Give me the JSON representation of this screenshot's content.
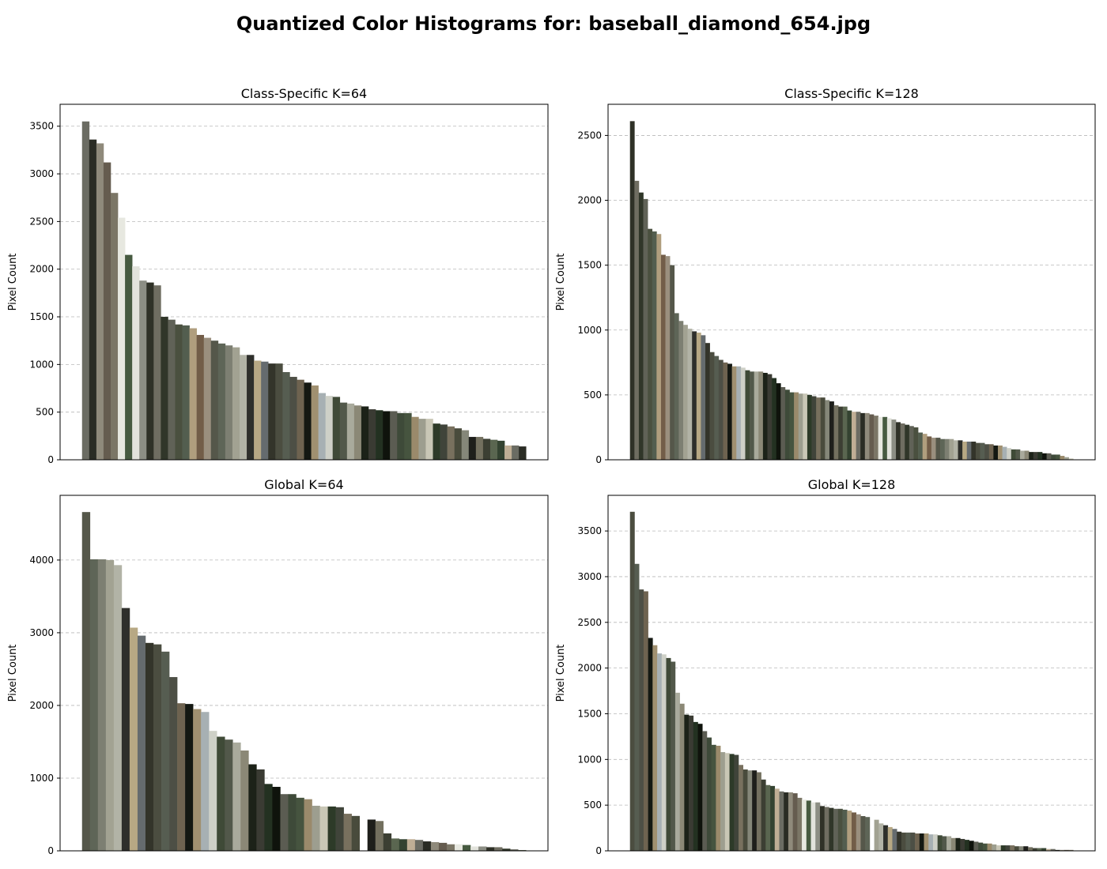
{
  "figure": {
    "title": "Quantized Color Histograms for: baseball_diamond_654.jpg"
  },
  "palette": [
    "#6b6c63",
    "#5b5c52",
    "#33342a",
    "#2f3127",
    "#494b3c",
    "#3f4a37",
    "#55574a",
    "#2a2c24",
    "#3e4a39",
    "#4b4d40",
    "#6f6d61",
    "#858779",
    "#52584a",
    "#5e6557",
    "#8f8a7b",
    "#46543f",
    "#565d51",
    "#303629",
    "#1e1f1b",
    "#a9aa9c",
    "#7d7f72",
    "#655c4f",
    "#9a8a6b",
    "#4d4f45",
    "#606257",
    "#73705f",
    "#8b8876",
    "#a2a292",
    "#7b7666",
    "#9d9e8f",
    "#6e6350",
    "#4a503f",
    "#3c3f33",
    "#1c2218",
    "#b2b3a6",
    "#e7e8e0",
    "#c9c7b6",
    "#141812",
    "#535e4f",
    "#5a6650",
    "#3a3b33",
    "#2e2f2b",
    "#465a40",
    "#2d3a28",
    "#a09070",
    "#b09e7e",
    "#344331",
    "#233121",
    "#b7a884",
    "#e2e3dc",
    "#40443a",
    "#a7b0b3",
    "#725d48",
    "#bfae95",
    "#0f130c",
    "#656b6e",
    "#8c8e84",
    "#78705e",
    "#ced0c7",
    "#9a8f7e"
  ],
  "subplots": [
    {
      "title": "Class-Specific K=64",
      "ylabel": "Pixel Count",
      "ymax": 3730,
      "ticks": [
        0,
        500,
        1000,
        1500,
        2000,
        2500,
        3000,
        3500
      ],
      "grid": true,
      "chart_data": {
        "type": "bar",
        "values": [
          3550,
          3360,
          3320,
          3120,
          2800,
          2540,
          2150,
          2030,
          1880,
          1860,
          1830,
          1500,
          1470,
          1420,
          1410,
          1380,
          1310,
          1280,
          1250,
          1220,
          1200,
          1180,
          1100,
          1100,
          1040,
          1030,
          1010,
          1010,
          920,
          870,
          840,
          810,
          780,
          700,
          670,
          660,
          600,
          590,
          570,
          560,
          530,
          520,
          510,
          510,
          490,
          490,
          450,
          430,
          430,
          380,
          370,
          350,
          330,
          310,
          240,
          240,
          220,
          210,
          200,
          150,
          150,
          140
        ],
        "ylabel": "Pixel Count",
        "ylim": [
          0,
          3730
        ]
      }
    },
    {
      "title": "Class-Specific K=128",
      "ylabel": "Pixel Count",
      "ymax": 2740,
      "ticks": [
        0,
        500,
        1000,
        1500,
        2000,
        2500
      ],
      "grid": true,
      "chart_data": {
        "type": "bar",
        "values": [
          2610,
          2150,
          2060,
          2010,
          1780,
          1760,
          1740,
          1580,
          1570,
          1500,
          1130,
          1070,
          1040,
          1010,
          990,
          980,
          960,
          900,
          830,
          800,
          770,
          750,
          740,
          720,
          720,
          710,
          690,
          680,
          680,
          680,
          670,
          660,
          630,
          590,
          560,
          540,
          520,
          520,
          510,
          510,
          500,
          490,
          480,
          480,
          460,
          450,
          420,
          410,
          410,
          380,
          370,
          370,
          360,
          360,
          350,
          340,
          330,
          330,
          320,
          310,
          290,
          280,
          270,
          260,
          250,
          210,
          200,
          180,
          170,
          170,
          160,
          160,
          160,
          150,
          150,
          140,
          140,
          140,
          130,
          130,
          120,
          120,
          110,
          110,
          100,
          90,
          80,
          80,
          70,
          70,
          60,
          60,
          60,
          50,
          50,
          40,
          40,
          30,
          20,
          10
        ],
        "ylabel": "Pixel Count",
        "ylim": [
          0,
          2740
        ]
      }
    },
    {
      "title": "Global K=64",
      "ylabel": "Pixel Count",
      "ymax": 4890,
      "ticks": [
        0,
        1000,
        2000,
        3000,
        4000
      ],
      "grid": true,
      "chart_data": {
        "type": "bar",
        "values": [
          4660,
          4010,
          4010,
          4000,
          3930,
          3340,
          3070,
          2960,
          2860,
          2840,
          2740,
          2390,
          2030,
          2020,
          1950,
          1910,
          1650,
          1570,
          1530,
          1490,
          1380,
          1190,
          1120,
          920,
          880,
          780,
          780,
          730,
          710,
          620,
          610,
          610,
          600,
          510,
          480,
          0,
          430,
          410,
          240,
          170,
          160,
          160,
          150,
          130,
          120,
          110,
          90,
          90,
          80,
          60,
          60,
          50,
          50,
          30,
          20,
          10
        ],
        "ylabel": "Pixel Count",
        "ylim": [
          0,
          4890
        ]
      }
    },
    {
      "title": "Global K=128",
      "ylabel": "Pixel Count",
      "ymax": 3890,
      "ticks": [
        0,
        500,
        1000,
        1500,
        2000,
        2500,
        3000,
        3500
      ],
      "grid": true,
      "chart_data": {
        "type": "bar",
        "values": [
          3710,
          3140,
          2860,
          2840,
          2330,
          2250,
          2160,
          2150,
          2110,
          2070,
          1730,
          1610,
          1490,
          1480,
          1410,
          1390,
          1310,
          1240,
          1160,
          1150,
          1080,
          1070,
          1060,
          1050,
          940,
          890,
          880,
          880,
          860,
          780,
          720,
          710,
          680,
          650,
          640,
          640,
          630,
          580,
          560,
          550,
          530,
          530,
          490,
          480,
          470,
          460,
          460,
          450,
          440,
          420,
          400,
          380,
          370,
          0,
          340,
          300,
          280,
          260,
          240,
          210,
          200,
          200,
          200,
          190,
          190,
          190,
          180,
          180,
          170,
          160,
          160,
          140,
          140,
          130,
          120,
          110,
          100,
          90,
          80,
          80,
          70,
          60,
          60,
          60,
          60,
          50,
          50,
          50,
          40,
          30,
          30,
          30,
          20,
          20,
          10,
          10,
          10,
          10
        ],
        "ylabel": "Pixel Count",
        "ylim": [
          0,
          3890
        ]
      }
    }
  ]
}
